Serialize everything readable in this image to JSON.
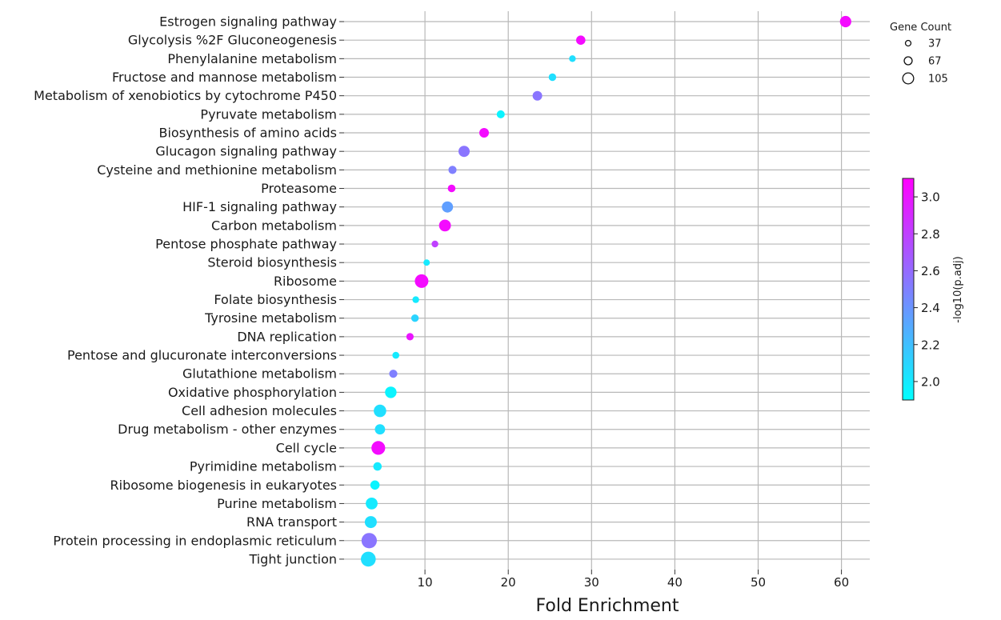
{
  "chart_data": {
    "type": "scatter",
    "subtype": "dot-plot",
    "xlabel": "Fold Enrichment",
    "ylabel": "",
    "xlim": [
      0,
      63.5
    ],
    "xticks": [
      10,
      20,
      30,
      40,
      50,
      60
    ],
    "grid": true,
    "categories": [
      "Estrogen signaling pathway",
      "Glycolysis %2F Gluconeogenesis",
      "Phenylalanine metabolism",
      "Fructose and mannose metabolism",
      "Metabolism of xenobiotics by cytochrome P450",
      "Pyruvate metabolism",
      "Biosynthesis of amino acids",
      "Glucagon signaling pathway",
      "Cysteine and methionine metabolism",
      "Proteasome",
      "HIF-1 signaling pathway",
      "Carbon metabolism",
      "Pentose phosphate pathway",
      "Steroid biosynthesis",
      "Ribosome",
      "Folate biosynthesis",
      "Tyrosine metabolism",
      "DNA replication",
      "Pentose and glucuronate interconversions",
      "Glutathione metabolism",
      "Oxidative phosphorylation",
      "Cell adhesion molecules",
      "Drug metabolism - other enzymes",
      "Cell cycle",
      "Pyrimidine metabolism",
      "Ribosome biogenesis in eukaryotes",
      "Purine metabolism",
      "RNA transport",
      "Protein processing in endoplasmic reticulum",
      "Tight junction"
    ],
    "fold_enrichment": [
      60.5,
      28.7,
      27.7,
      25.3,
      23.5,
      19.1,
      17.1,
      14.7,
      13.3,
      13.2,
      12.7,
      12.4,
      11.2,
      10.2,
      9.6,
      8.9,
      8.8,
      8.2,
      6.5,
      6.2,
      5.9,
      4.6,
      4.6,
      4.4,
      4.3,
      4.0,
      3.6,
      3.5,
      3.3,
      3.2
    ],
    "gene_count": [
      74,
      54,
      30,
      38,
      58,
      42,
      57,
      72,
      44,
      40,
      72,
      79,
      30,
      28,
      95,
      30,
      38,
      37,
      32,
      44,
      75,
      85,
      64,
      97,
      47,
      55,
      79,
      80,
      112,
      108
    ],
    "neg_log10_padj": [
      3.05,
      3.05,
      2.05,
      2.05,
      2.55,
      1.95,
      3.05,
      2.55,
      2.5,
      3.05,
      2.35,
      3.05,
      2.8,
      2.0,
      3.05,
      2.0,
      2.1,
      3.0,
      2.0,
      2.5,
      1.95,
      2.05,
      2.05,
      3.05,
      2.0,
      1.95,
      2.0,
      2.05,
      2.55,
      2.05
    ],
    "size_legend": {
      "title": "Gene Count",
      "entries": [
        {
          "label": "37",
          "value": 37
        },
        {
          "label": "67",
          "value": 67
        },
        {
          "label": "105",
          "value": 105
        }
      ]
    },
    "colorbar": {
      "title": "-log10(p.adj)",
      "range": [
        1.9,
        3.1
      ],
      "ticks": [
        2.0,
        2.2,
        2.4,
        2.6,
        2.8,
        3.0
      ],
      "tick_labels": [
        "2.0",
        "2.2",
        "2.4",
        "2.6",
        "2.8",
        "3.0"
      ],
      "colormap": "cool",
      "color_low": "#00ffff",
      "color_high": "#ff00ff"
    }
  }
}
